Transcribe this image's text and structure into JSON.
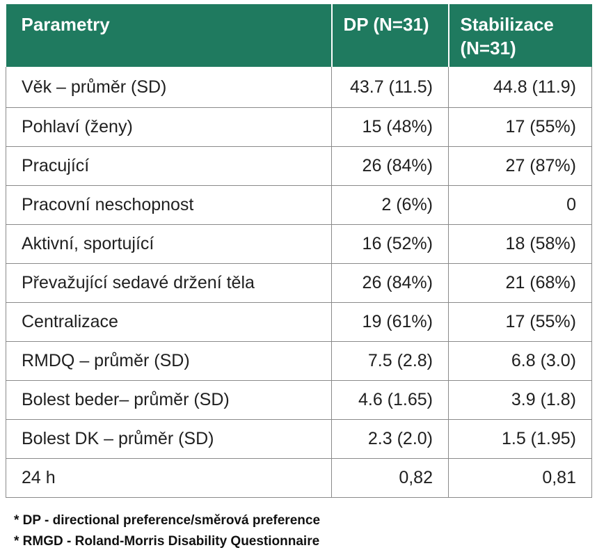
{
  "table": {
    "headers": [
      "Parametry",
      "DP (N=31)",
      "Stabilizace (N=31)"
    ],
    "rows": [
      [
        "Věk – průměr (SD)",
        "43.7 (11.5)",
        "44.8 (11.9)"
      ],
      [
        "Pohlaví (ženy)",
        "15 (48%)",
        "17 (55%)"
      ],
      [
        "Pracující",
        "26 (84%)",
        "27 (87%)"
      ],
      [
        "Pracovní neschopnost",
        "2 (6%)",
        "0"
      ],
      [
        "Aktivní, sportující",
        "16 (52%)",
        "18 (58%)"
      ],
      [
        "Převažující sedavé držení těla",
        "26 (84%)",
        "21 (68%)"
      ],
      [
        "Centralizace",
        "19 (61%)",
        "17 (55%)"
      ],
      [
        "RMDQ – průměr (SD)",
        "7.5 (2.8)",
        "6.8 (3.0)"
      ],
      [
        "Bolest beder– průměr (SD)",
        "4.6 (1.65)",
        "3.9 (1.8)"
      ],
      [
        "Bolest DK – průměr (SD)",
        "2.3 (2.0)",
        "1.5 (1.95)"
      ],
      [
        "24 h",
        "0,82",
        "0,81"
      ]
    ],
    "header_color": "#1f7a5f"
  },
  "footnotes": [
    "* DP - directional preference/směrová preference",
    "* RMGD - Roland-Morris Disability Questionnaire"
  ]
}
